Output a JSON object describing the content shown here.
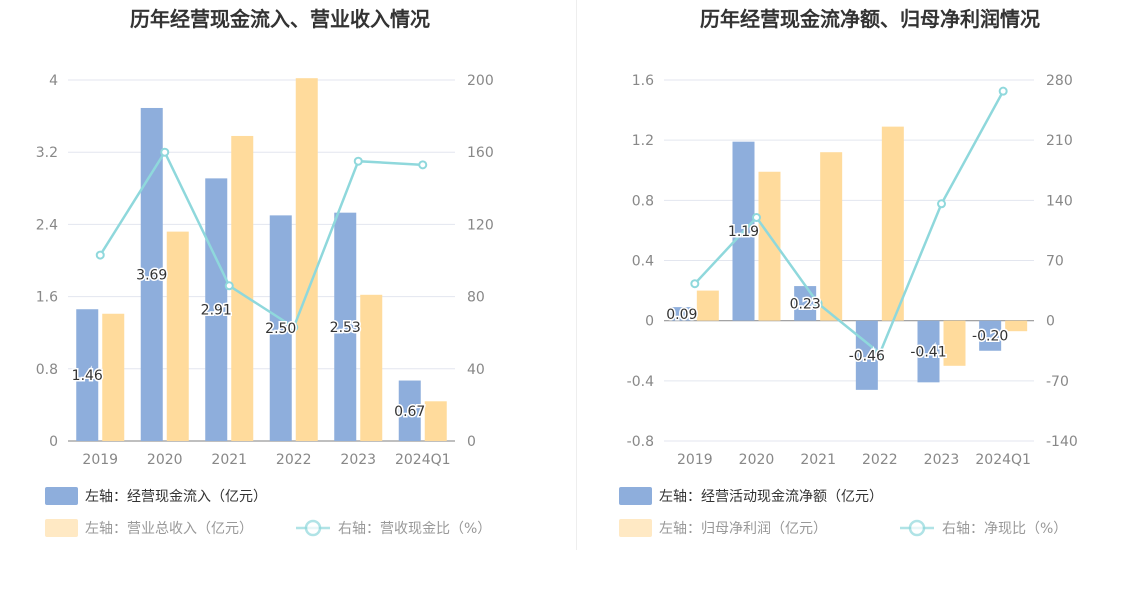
{
  "chart_data": [
    {
      "type": "bar",
      "title": "历年经营现金流入、营业收入情况",
      "categories": [
        "2019",
        "2020",
        "2021",
        "2022",
        "2023",
        "2024Q1"
      ],
      "left_axis": {
        "min": 0,
        "max": 4,
        "ticks": [
          "0",
          "0.8",
          "1.6",
          "2.4",
          "3.2",
          "4"
        ]
      },
      "right_axis": {
        "min": 0,
        "max": 200,
        "ticks": [
          "0",
          "40",
          "80",
          "120",
          "160",
          "200"
        ]
      },
      "series": [
        {
          "name": "左轴：经营现金流入（亿元）",
          "kind": "bar",
          "axis": "left",
          "color": "#8eaedc",
          "values": [
            1.46,
            3.69,
            2.91,
            2.5,
            2.53,
            0.67
          ],
          "labels": [
            "1.46",
            "3.69",
            "2.91",
            "2.50",
            "2.53",
            "0.67"
          ]
        },
        {
          "name": "左轴：营业总收入（亿元）",
          "kind": "bar",
          "axis": "left",
          "color": "#ffdb9c",
          "values": [
            1.41,
            2.32,
            3.38,
            4.02,
            1.62,
            0.44
          ]
        },
        {
          "name": "右轴：营收现金比（%）",
          "kind": "line",
          "axis": "right",
          "color": "#8fd8dc",
          "values": [
            103,
            160,
            86,
            63,
            155,
            153
          ]
        }
      ],
      "legend": "bottom"
    },
    {
      "type": "bar",
      "title": "历年经营现金流净额、归母净利润情况",
      "categories": [
        "2019",
        "2020",
        "2021",
        "2022",
        "2023",
        "2024Q1"
      ],
      "left_axis": {
        "min": -0.8,
        "max": 1.6,
        "ticks": [
          "-0.8",
          "-0.4",
          "0",
          "0.4",
          "0.8",
          "1.2",
          "1.6"
        ]
      },
      "right_axis": {
        "min": -140,
        "max": 280,
        "ticks": [
          "-140",
          "-70",
          "0",
          "70",
          "140",
          "210",
          "280"
        ]
      },
      "series": [
        {
          "name": "左轴：经营活动现金流净额（亿元）",
          "kind": "bar",
          "axis": "left",
          "color": "#8eaedc",
          "values": [
            0.09,
            1.19,
            0.23,
            -0.46,
            -0.41,
            -0.2
          ],
          "labels": [
            "0.09",
            "1.19",
            "0.23",
            "-0.46",
            "-0.41",
            "-0.20"
          ]
        },
        {
          "name": "左轴：归母净利润（亿元）",
          "kind": "bar",
          "axis": "left",
          "color": "#ffdb9c",
          "values": [
            0.2,
            0.99,
            1.12,
            1.29,
            -0.3,
            -0.07
          ]
        },
        {
          "name": "右轴：净现比（%）",
          "kind": "line",
          "axis": "right",
          "color": "#8fd8dc",
          "values": [
            43,
            120,
            20,
            -38,
            136,
            267
          ]
        }
      ],
      "legend": "bottom"
    }
  ]
}
